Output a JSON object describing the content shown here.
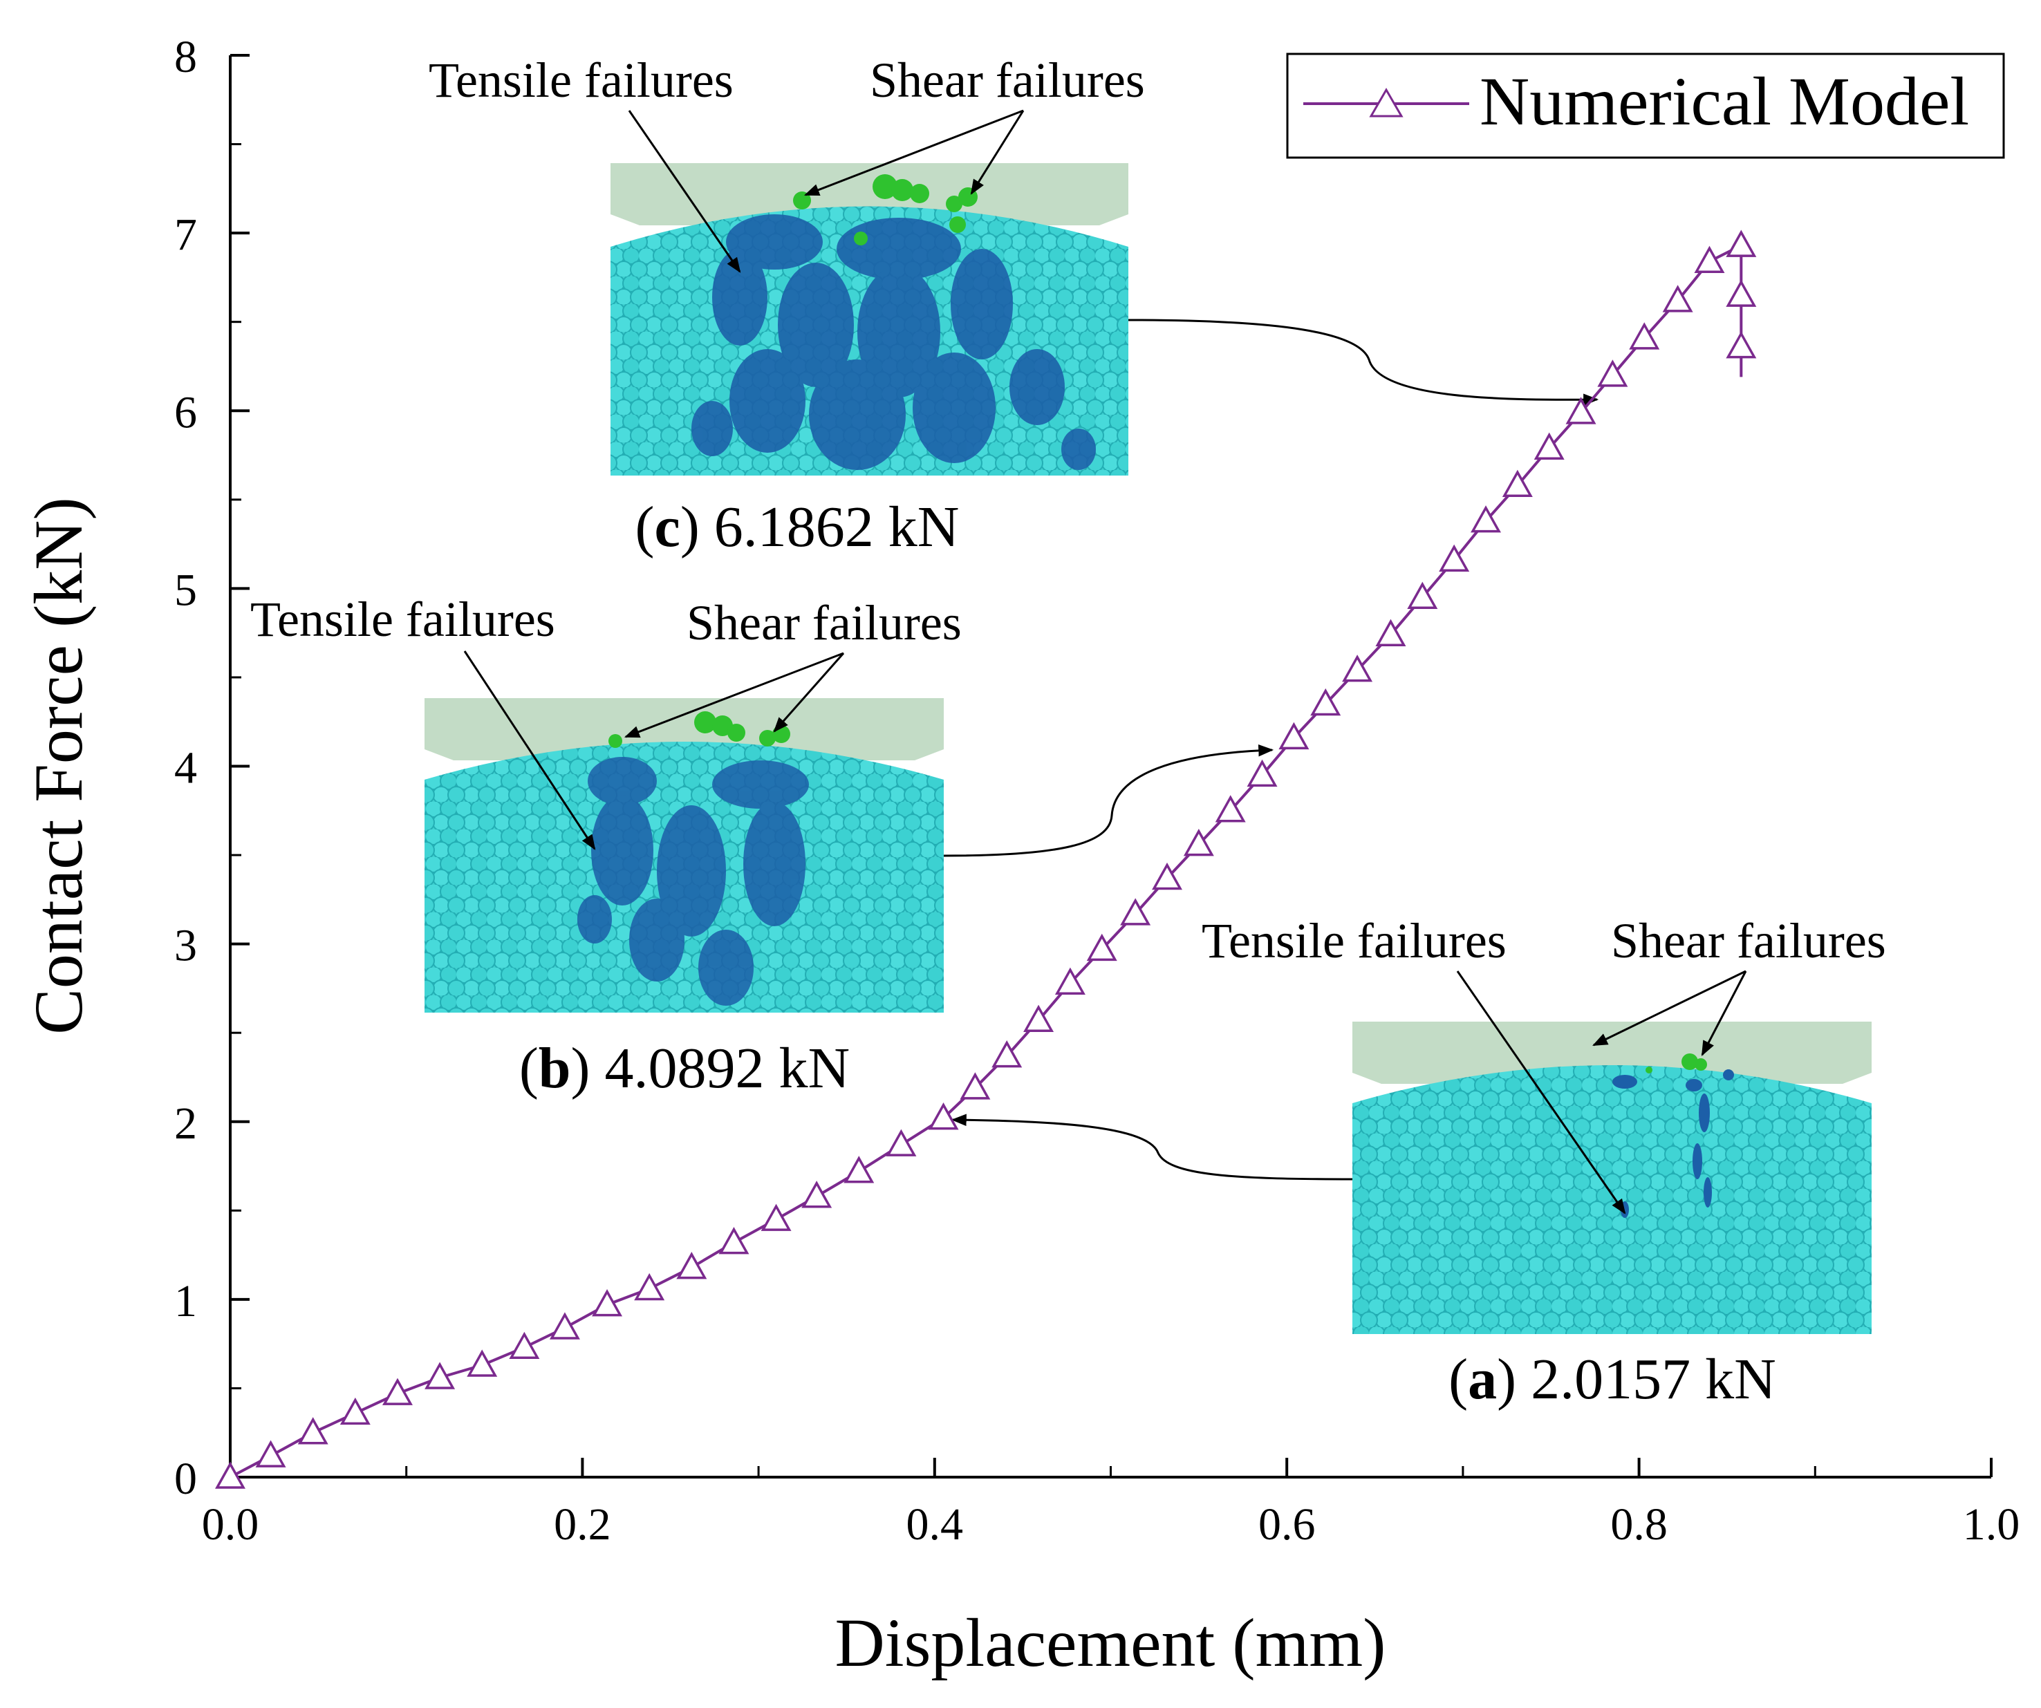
{
  "chart_data": {
    "type": "line",
    "xlabel": "Displacement (mm)",
    "ylabel": "Contact Force (kN)",
    "xlim": [
      0,
      1.0
    ],
    "ylim": [
      0,
      8
    ],
    "x_ticks": [
      0.0,
      0.2,
      0.4,
      0.6,
      0.8,
      1.0
    ],
    "x_tick_labels": [
      "0.0",
      "0.2",
      "0.4",
      "0.6",
      "0.8",
      "1.0"
    ],
    "y_ticks": [
      0,
      1,
      2,
      3,
      4,
      5,
      6,
      7,
      8
    ],
    "y_tick_labels": [
      "0",
      "1",
      "2",
      "3",
      "4",
      "5",
      "6",
      "7",
      "8"
    ],
    "legend": {
      "position": "top-right",
      "entries": [
        "Numerical Model"
      ]
    },
    "series": [
      {
        "name": "Numerical Model",
        "color": "#7b2a8e",
        "marker": "open-triangle",
        "x": [
          0.0,
          0.023,
          0.047,
          0.071,
          0.095,
          0.119,
          0.143,
          0.167,
          0.19,
          0.214,
          0.238,
          0.262,
          0.286,
          0.31,
          0.333,
          0.357,
          0.381,
          0.405,
          0.423,
          0.441,
          0.459,
          0.477,
          0.495,
          0.514,
          0.532,
          0.55,
          0.568,
          0.586,
          0.604,
          0.622,
          0.64,
          0.659,
          0.677,
          0.695,
          0.713,
          0.731,
          0.749,
          0.767,
          0.785,
          0.803,
          0.822,
          0.84,
          0.858,
          0.858,
          0.858
        ],
        "y": [
          0.0,
          0.12,
          0.25,
          0.36,
          0.47,
          0.56,
          0.63,
          0.73,
          0.84,
          0.97,
          1.06,
          1.18,
          1.32,
          1.45,
          1.58,
          1.72,
          1.87,
          2.02,
          2.19,
          2.37,
          2.57,
          2.78,
          2.97,
          3.17,
          3.37,
          3.56,
          3.75,
          3.95,
          4.16,
          4.35,
          4.54,
          4.74,
          4.95,
          5.16,
          5.38,
          5.58,
          5.79,
          5.99,
          6.2,
          6.41,
          6.62,
          6.84,
          6.93,
          6.65,
          6.36
        ]
      }
    ],
    "insets": [
      {
        "id": "a",
        "letter": "a",
        "value": "2.0157",
        "unit": "kN",
        "tensile_label": "Tensile failures",
        "shear_label": "Shear failures",
        "points_to": {
          "x": 0.405,
          "y": 2.02
        }
      },
      {
        "id": "b",
        "letter": "b",
        "value": "4.0892",
        "unit": "kN",
        "tensile_label": "Tensile failures",
        "shear_label": "Shear failures",
        "points_to": {
          "x": 0.59,
          "y": 4.1
        }
      },
      {
        "id": "c",
        "letter": "c",
        "value": "6.1862",
        "unit": "kN",
        "tensile_label": "Tensile failures",
        "shear_label": "Shear failures",
        "points_to": {
          "x": 0.775,
          "y": 6.05
        }
      }
    ]
  },
  "colors": {
    "particle": "#3cd3d3",
    "particle_dark": "#1fa9b2",
    "indenter": "#c3dcc6",
    "tensile_crack": "#1c5fa8",
    "shear_crack": "#2fc22f"
  }
}
